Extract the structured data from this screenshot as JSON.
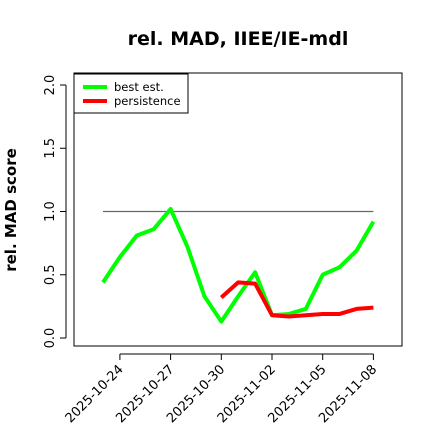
{
  "chart_data": {
    "type": "line",
    "title": "rel. MAD, IIEE/IE-mdl",
    "xlabel": "",
    "ylabel": "rel. MAD score",
    "ylim": [
      0.0,
      2.0
    ],
    "yticks": [
      "0.0",
      "0.5",
      "1.0",
      "1.5",
      "2.0"
    ],
    "xticks": [
      "2025-10-24",
      "2025-10-27",
      "2025-10-30",
      "2025-11-02",
      "2025-11-05",
      "2025-11-08"
    ],
    "x": [
      "2025-10-23",
      "2025-10-24",
      "2025-10-25",
      "2025-10-26",
      "2025-10-27",
      "2025-10-28",
      "2025-10-29",
      "2025-10-30",
      "2025-10-31",
      "2025-11-01",
      "2025-11-02",
      "2025-11-03",
      "2025-11-04",
      "2025-11-05",
      "2025-11-06",
      "2025-11-07",
      "2025-11-08"
    ],
    "reference_line": 1.0,
    "grid": false,
    "legend_position": "top-left",
    "series": [
      {
        "name": "best est.",
        "color": "#00ff00",
        "values": [
          0.44,
          0.64,
          0.81,
          0.86,
          1.02,
          0.72,
          0.33,
          0.13,
          0.33,
          0.52,
          0.18,
          0.19,
          0.23,
          0.5,
          0.56,
          0.69,
          0.92
        ]
      },
      {
        "name": "persistence",
        "color": "#ff0000",
        "values": [
          null,
          null,
          null,
          null,
          null,
          null,
          null,
          0.32,
          0.44,
          0.43,
          0.18,
          0.17,
          0.18,
          0.19,
          0.19,
          0.23,
          0.24
        ]
      }
    ]
  }
}
